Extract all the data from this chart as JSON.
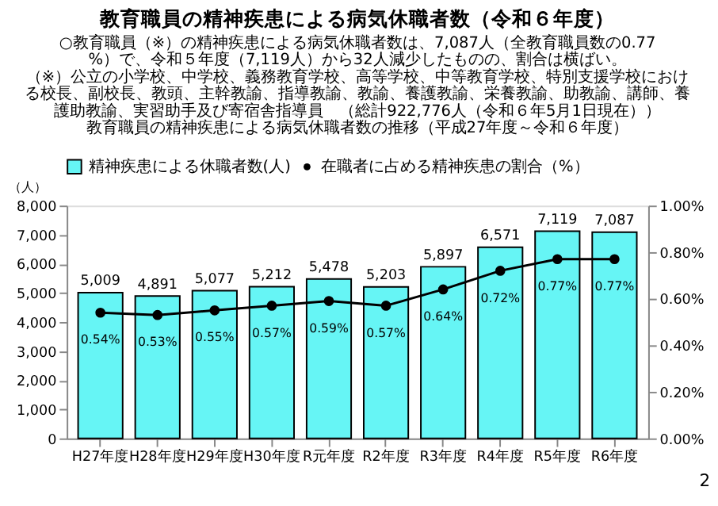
{
  "chart_data": {
    "type": "bar",
    "title": "教育職員の精神疾患による病気休職者数（令和６年度）",
    "subtitle": "教育職員の精神疾患による病気休職者数の推移（平成27年度～令和６年度）",
    "annotations": [
      "○教育職員（※）の精神疾患による病気休職者数は、7,087人（全教育職員数の0.77%）で、令和５年度（7,119人）から32人減少したものの、割合は横ばい。",
      "（※）公立の小学校、中学校、義務教育学校、高等学校、中等教育学校、特別支援学校における校長、副校長、教頭、主幹教諭、指導教諭、教諭、養護教諭、栄養教諭、助教諭、講師、養護助教諭、実習助手及び寄宿舎指導員　（総計922,776人（令和６年5月1日現在））",
      "2"
    ],
    "categories": [
      "H27年度",
      "H28年度",
      "H29年度",
      "H30年度",
      "R元年度",
      "R2年度",
      "R3年度",
      "R4年度",
      "R5年度",
      "R6年度"
    ],
    "series": [
      {
        "name": "精神疾患による休職者数(人)",
        "color": "#66f5f5",
        "values": [
          5009,
          4891,
          5077,
          5212,
          5478,
          5203,
          5897,
          6571,
          7119,
          7087
        ],
        "value_labels": [
          "5,009",
          "4,891",
          "5,077",
          "5,212",
          "5,478",
          "5,203",
          "5,897",
          "6,571",
          "7,119",
          "7,087"
        ]
      },
      {
        "name": "在職者に占める精神疾患の割合（%）",
        "type": "line",
        "axis": "y2",
        "color": "#000000",
        "marker": "circle",
        "values": [
          0.54,
          0.53,
          0.55,
          0.57,
          0.59,
          0.57,
          0.64,
          0.72,
          0.77,
          0.77
        ],
        "value_labels": [
          "0.54%",
          "0.53%",
          "0.55%",
          "0.57%",
          "0.59%",
          "0.57%",
          "0.64%",
          "0.72%",
          "0.77%",
          "0.77%"
        ]
      }
    ],
    "ylabel": "（人）",
    "ylim": [
      0,
      8000
    ],
    "yticks": [
      {
        "value": 0,
        "label": "0"
      },
      {
        "value": 1000,
        "label": "1,000"
      },
      {
        "value": 2000,
        "label": "2,000"
      },
      {
        "value": 3000,
        "label": "3,000"
      },
      {
        "value": 4000,
        "label": "4,000"
      },
      {
        "value": 5000,
        "label": "5,000"
      },
      {
        "value": 6000,
        "label": "6,000"
      },
      {
        "value": 7000,
        "label": "7,000"
      },
      {
        "value": 8000,
        "label": "8,000"
      }
    ],
    "y2lim": [
      0,
      1.0
    ],
    "y2ticks": [
      {
        "value": 0,
        "label": "0.00%"
      },
      {
        "value": 0.2,
        "label": "0.20%"
      },
      {
        "value": 0.4,
        "label": "0.40%"
      },
      {
        "value": 0.6,
        "label": "0.60%"
      },
      {
        "value": 0.8,
        "label": "0.80%"
      },
      {
        "value": 1.0,
        "label": "1.00%"
      }
    ],
    "legend": "top",
    "grid": false
  }
}
